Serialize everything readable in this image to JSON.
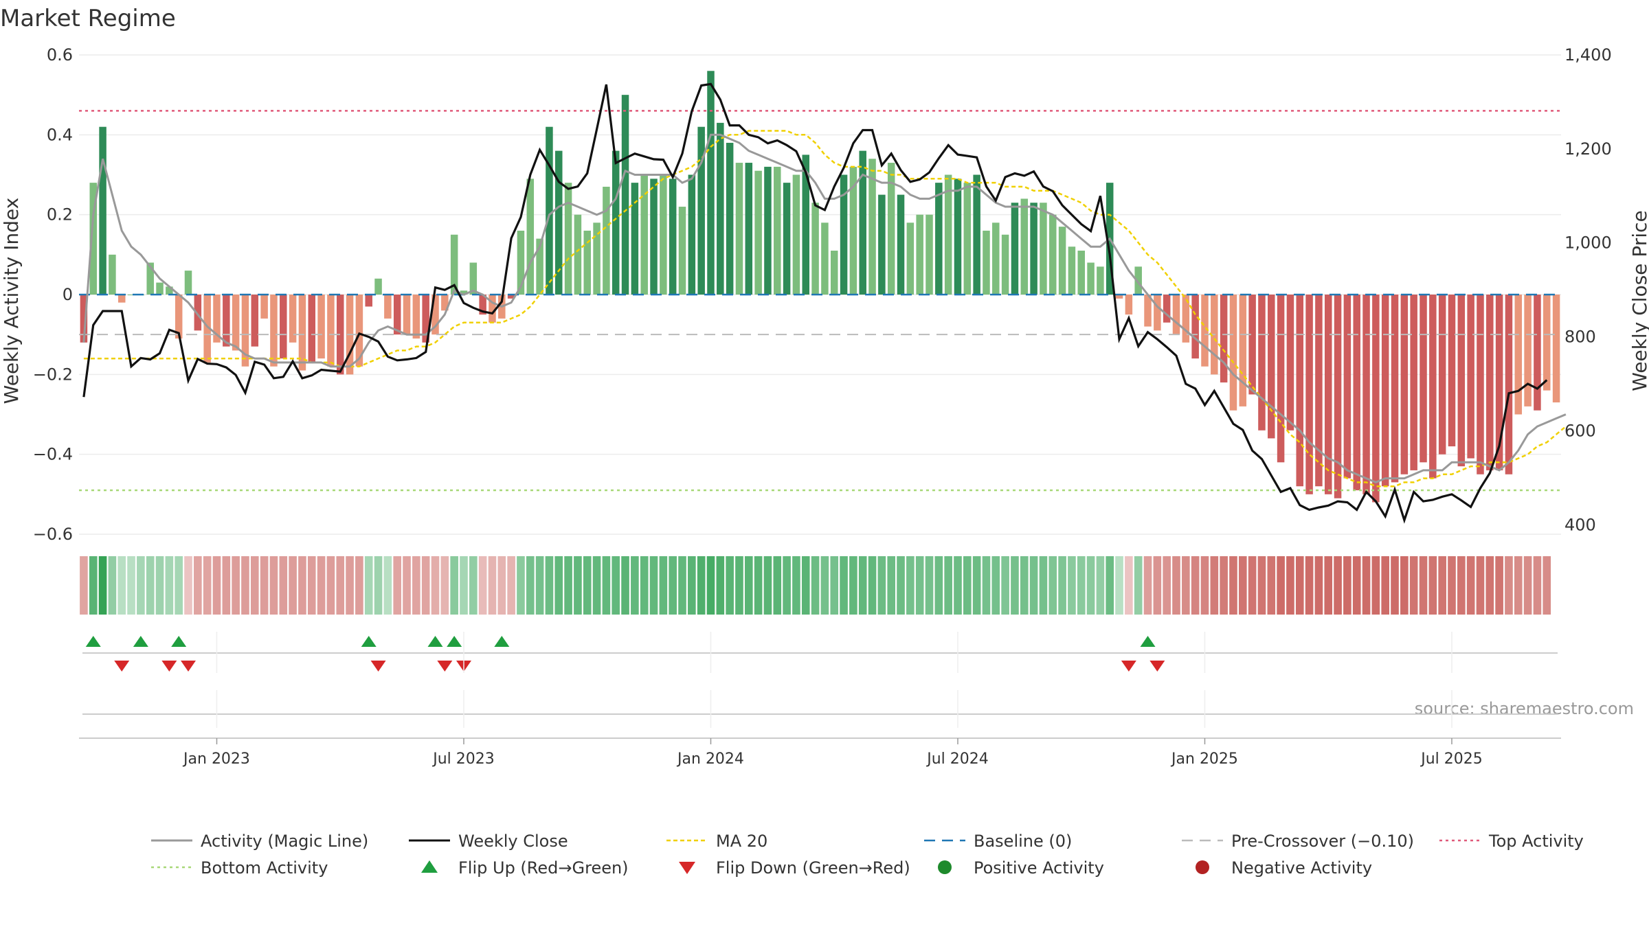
{
  "title": "Market Regime",
  "source": "source: sharemaestro.com",
  "colors": {
    "pos_dark": "#2e8b57",
    "pos_light": "#7dbd7d",
    "neg_dark": "#cd5c5c",
    "neg_light": "#e9967a",
    "close": "#111111",
    "magic": "#999999",
    "ma20": "#f0d000",
    "baseline": "#1f77b4",
    "precross": "#bbbbbb",
    "top": "#e05a7a",
    "bottom": "#a8d878",
    "flip_up": "#1f9e3f",
    "flip_down": "#d62728"
  },
  "chart_data": {
    "type": "bar",
    "left_axis": {
      "label": "Weekly Activity Index",
      "ylim": [
        -0.6,
        0.6
      ],
      "ticks": [
        "0.6",
        "0.4",
        "0.2",
        "0",
        "−0.2",
        "−0.4",
        "−0.6"
      ]
    },
    "right_axis": {
      "label": "Weekly Close Price",
      "ylim": [
        380,
        1400
      ],
      "ticks": [
        "1,400",
        "1,200",
        "1,000",
        "800",
        "600",
        "400"
      ]
    },
    "x_ticks": [
      "Jan 2023",
      "Jul 2023",
      "Jan 2024",
      "Jul 2024",
      "Jan 2025",
      "Jul 2025"
    ],
    "x_tick_weeks": [
      14,
      40,
      66,
      92,
      118,
      144
    ],
    "reference_lines": {
      "baseline": 0,
      "pre_crossover": -0.1,
      "top_activity": 0.46,
      "bottom_activity": -0.49
    },
    "activity_weekly": [
      -0.12,
      0.28,
      0.42,
      0.1,
      -0.02,
      0,
      0,
      0.08,
      0.03,
      0.02,
      -0.11,
      0.06,
      -0.09,
      -0.17,
      -0.12,
      -0.13,
      -0.14,
      -0.18,
      -0.13,
      -0.06,
      -0.18,
      -0.16,
      -0.12,
      -0.19,
      -0.17,
      -0.16,
      -0.18,
      -0.2,
      -0.2,
      -0.18,
      -0.03,
      0.04,
      -0.06,
      -0.1,
      -0.1,
      -0.11,
      -0.12,
      -0.1,
      -0.04,
      0.15,
      0.01,
      0.08,
      -0.05,
      -0.07,
      -0.06,
      -0.01,
      0.16,
      0.29,
      0.14,
      0.42,
      0.36,
      0.28,
      0.2,
      0.16,
      0.18,
      0.27,
      0.36,
      0.5,
      0.28,
      0.3,
      0.29,
      0.3,
      0.29,
      0.22,
      0.3,
      0.42,
      0.56,
      0.43,
      0.38,
      0.33,
      0.33,
      0.31,
      0.32,
      0.32,
      0.28,
      0.3,
      0.35,
      0.23,
      0.18,
      0.11,
      0.3,
      0.32,
      0.36,
      0.34,
      0.25,
      0.33,
      0.25,
      0.18,
      0.2,
      0.2,
      0.28,
      0.3,
      0.29,
      0.28,
      0.3,
      0.16,
      0.18,
      0.15,
      0.23,
      0.24,
      0.23,
      0.23,
      0.2,
      0.17,
      0.12,
      0.11,
      0.08,
      0.07,
      0.28,
      -0.01,
      -0.05,
      0.07,
      -0.08,
      -0.09,
      -0.07,
      -0.1,
      -0.12,
      -0.16,
      -0.18,
      -0.2,
      -0.22,
      -0.29,
      -0.28,
      -0.25,
      -0.34,
      -0.36,
      -0.42,
      -0.34,
      -0.48,
      -0.5,
      -0.48,
      -0.5,
      -0.51,
      -0.46,
      -0.49,
      -0.5,
      -0.52,
      -0.48,
      -0.47,
      -0.45,
      -0.44,
      -0.42,
      -0.46,
      -0.4,
      -0.38,
      -0.43,
      -0.41,
      -0.45,
      -0.44,
      -0.44,
      -0.45,
      -0.3,
      -0.28,
      -0.29,
      -0.24,
      -0.27
    ],
    "close_weekly": [
      672,
      825,
      855,
      855,
      855,
      737,
      755,
      752,
      765,
      815,
      808,
      707,
      753,
      743,
      742,
      735,
      719,
      681,
      747,
      741,
      712,
      715,
      748,
      712,
      718,
      730,
      728,
      726,
      765,
      807,
      800,
      790,
      758,
      750,
      752,
      755,
      768,
      905,
      900,
      910,
      872,
      862,
      854,
      850,
      875,
      1010,
      1055,
      1145,
      1198,
      1165,
      1130,
      1115,
      1120,
      1148,
      1242,
      1337,
      1170,
      1180,
      1190,
      1184,
      1178,
      1177,
      1140,
      1190,
      1280,
      1335,
      1338,
      1305,
      1250,
      1250,
      1230,
      1225,
      1212,
      1218,
      1208,
      1195,
      1150,
      1080,
      1070,
      1120,
      1160,
      1212,
      1240,
      1240,
      1165,
      1190,
      1155,
      1130,
      1135,
      1150,
      1180,
      1208,
      1188,
      1185,
      1182,
      1120,
      1090,
      1140,
      1148,
      1143,
      1152,
      1120,
      1110,
      1080,
      1060,
      1040,
      1025,
      1100,
      975,
      795,
      840,
      780,
      810,
      795,
      778,
      760,
      700,
      690,
      655,
      685,
      650,
      615,
      602,
      558,
      540,
      505,
      470,
      478,
      442,
      432,
      437,
      441,
      450,
      448,
      432,
      470,
      450,
      418,
      475,
      410,
      470,
      450,
      453,
      460,
      465,
      452,
      438,
      478,
      510,
      568,
      680,
      685,
      700,
      690,
      708
    ],
    "magic_weekly": [
      -0.12,
      0.2,
      0.34,
      0.25,
      0.16,
      0.12,
      0.1,
      0.07,
      0.04,
      0.02,
      0,
      -0.02,
      -0.05,
      -0.08,
      -0.1,
      -0.12,
      -0.13,
      -0.15,
      -0.16,
      -0.16,
      -0.17,
      -0.17,
      -0.17,
      -0.17,
      -0.17,
      -0.17,
      -0.18,
      -0.18,
      -0.18,
      -0.16,
      -0.12,
      -0.09,
      -0.08,
      -0.09,
      -0.1,
      -0.1,
      -0.1,
      -0.08,
      -0.05,
      0.01,
      0,
      0.01,
      0,
      -0.02,
      -0.03,
      -0.02,
      0.02,
      0.08,
      0.12,
      0.2,
      0.22,
      0.23,
      0.22,
      0.21,
      0.2,
      0.21,
      0.24,
      0.31,
      0.3,
      0.3,
      0.3,
      0.3,
      0.3,
      0.28,
      0.29,
      0.33,
      0.4,
      0.4,
      0.39,
      0.38,
      0.36,
      0.35,
      0.34,
      0.33,
      0.32,
      0.31,
      0.31,
      0.28,
      0.24,
      0.24,
      0.25,
      0.27,
      0.3,
      0.29,
      0.28,
      0.28,
      0.27,
      0.25,
      0.24,
      0.24,
      0.25,
      0.26,
      0.26,
      0.27,
      0.27,
      0.25,
      0.23,
      0.22,
      0.22,
      0.22,
      0.22,
      0.21,
      0.2,
      0.18,
      0.16,
      0.14,
      0.12,
      0.12,
      0.14,
      0.1,
      0.06,
      0.03,
      0,
      -0.03,
      -0.05,
      -0.07,
      -0.09,
      -0.11,
      -0.13,
      -0.15,
      -0.17,
      -0.2,
      -0.22,
      -0.24,
      -0.26,
      -0.28,
      -0.3,
      -0.32,
      -0.34,
      -0.37,
      -0.39,
      -0.41,
      -0.42,
      -0.44,
      -0.45,
      -0.46,
      -0.47,
      -0.46,
      -0.46,
      -0.46,
      -0.45,
      -0.44,
      -0.44,
      -0.44,
      -0.42,
      -0.42,
      -0.42,
      -0.42,
      -0.43,
      -0.44,
      -0.42,
      -0.39,
      -0.35,
      -0.33,
      -0.32,
      -0.31,
      -0.3
    ],
    "ma20_weekly": [
      -0.16,
      -0.16,
      -0.16,
      -0.16,
      -0.16,
      -0.16,
      -0.16,
      -0.16,
      -0.16,
      -0.16,
      -0.16,
      -0.16,
      -0.16,
      -0.16,
      -0.16,
      -0.16,
      -0.16,
      -0.16,
      -0.16,
      -0.16,
      -0.16,
      -0.16,
      -0.16,
      -0.16,
      -0.17,
      -0.17,
      -0.17,
      -0.18,
      -0.18,
      -0.18,
      -0.17,
      -0.16,
      -0.15,
      -0.14,
      -0.14,
      -0.13,
      -0.13,
      -0.12,
      -0.1,
      -0.08,
      -0.07,
      -0.07,
      -0.07,
      -0.07,
      -0.07,
      -0.06,
      -0.05,
      -0.03,
      0,
      0.03,
      0.06,
      0.09,
      0.11,
      0.13,
      0.15,
      0.17,
      0.19,
      0.21,
      0.23,
      0.25,
      0.27,
      0.29,
      0.3,
      0.31,
      0.32,
      0.34,
      0.37,
      0.39,
      0.4,
      0.4,
      0.41,
      0.41,
      0.41,
      0.41,
      0.41,
      0.4,
      0.4,
      0.38,
      0.35,
      0.33,
      0.32,
      0.32,
      0.32,
      0.31,
      0.31,
      0.3,
      0.3,
      0.29,
      0.29,
      0.29,
      0.29,
      0.29,
      0.29,
      0.28,
      0.28,
      0.28,
      0.28,
      0.27,
      0.27,
      0.27,
      0.26,
      0.26,
      0.26,
      0.25,
      0.24,
      0.23,
      0.21,
      0.2,
      0.2,
      0.18,
      0.16,
      0.13,
      0.1,
      0.08,
      0.05,
      0.02,
      -0.01,
      -0.05,
      -0.08,
      -0.11,
      -0.14,
      -0.17,
      -0.2,
      -0.23,
      -0.26,
      -0.29,
      -0.32,
      -0.35,
      -0.37,
      -0.4,
      -0.42,
      -0.44,
      -0.45,
      -0.46,
      -0.47,
      -0.47,
      -0.48,
      -0.48,
      -0.48,
      -0.47,
      -0.47,
      -0.46,
      -0.46,
      -0.45,
      -0.45,
      -0.44,
      -0.43,
      -0.43,
      -0.42,
      -0.42,
      -0.42,
      -0.41,
      -0.4,
      -0.38,
      -0.37,
      -0.35,
      -0.33
    ],
    "regime_strip_weekly": [
      -0.3,
      0.6,
      0.8,
      0.3,
      0.1,
      0.1,
      0.2,
      0.25,
      0.25,
      0.2,
      0.2,
      -0.1,
      -0.3,
      -0.3,
      -0.35,
      -0.35,
      -0.35,
      -0.35,
      -0.35,
      -0.35,
      -0.35,
      -0.35,
      -0.35,
      -0.35,
      -0.35,
      -0.35,
      -0.35,
      -0.35,
      -0.35,
      -0.35,
      0.2,
      0.25,
      0.1,
      -0.3,
      -0.3,
      -0.3,
      -0.3,
      -0.25,
      -0.2,
      0.35,
      0.2,
      0.3,
      -0.15,
      -0.2,
      -0.2,
      -0.2,
      0.35,
      0.45,
      0.45,
      0.5,
      0.55,
      0.55,
      0.55,
      0.55,
      0.55,
      0.55,
      0.55,
      0.6,
      0.55,
      0.55,
      0.55,
      0.55,
      0.55,
      0.55,
      0.6,
      0.65,
      0.7,
      0.65,
      0.6,
      0.6,
      0.6,
      0.6,
      0.6,
      0.6,
      0.55,
      0.55,
      0.6,
      0.5,
      0.45,
      0.45,
      0.55,
      0.55,
      0.55,
      0.55,
      0.5,
      0.5,
      0.5,
      0.45,
      0.45,
      0.45,
      0.5,
      0.5,
      0.5,
      0.5,
      0.5,
      0.45,
      0.45,
      0.4,
      0.45,
      0.45,
      0.45,
      0.45,
      0.4,
      0.4,
      0.35,
      0.35,
      0.35,
      0.3,
      0.5,
      0.1,
      -0.1,
      0.3,
      -0.35,
      -0.4,
      -0.4,
      -0.45,
      -0.45,
      -0.5,
      -0.5,
      -0.55,
      -0.55,
      -0.6,
      -0.6,
      -0.6,
      -0.6,
      -0.6,
      -0.65,
      -0.65,
      -0.65,
      -0.65,
      -0.65,
      -0.65,
      -0.65,
      -0.65,
      -0.65,
      -0.65,
      -0.65,
      -0.65,
      -0.65,
      -0.65,
      -0.6,
      -0.6,
      -0.6,
      -0.6,
      -0.6,
      -0.6,
      -0.6,
      -0.6,
      -0.6,
      -0.6,
      -0.45,
      -0.45,
      -0.45,
      -0.45,
      -0.45
    ],
    "flip_up_weeks": [
      1,
      6,
      10,
      30,
      37,
      39,
      44,
      112
    ],
    "flip_down_weeks": [
      4,
      9,
      11,
      31,
      38,
      40,
      110,
      113
    ],
    "legend": [
      {
        "key": "magic",
        "label": "Activity (Magic Line)"
      },
      {
        "key": "close",
        "label": "Weekly Close"
      },
      {
        "key": "ma20",
        "label": "MA 20"
      },
      {
        "key": "baseline",
        "label": "Baseline (0)"
      },
      {
        "key": "precross",
        "label": "Pre-Crossover (−0.10)"
      },
      {
        "key": "top",
        "label": "Top Activity"
      },
      {
        "key": "bottom",
        "label": "Bottom Activity"
      },
      {
        "key": "flip_up",
        "label": "Flip Up (Red→Green)"
      },
      {
        "key": "flip_down",
        "label": "Flip Down (Green→Red)"
      },
      {
        "key": "pos",
        "label": "Positive Activity"
      },
      {
        "key": "neg",
        "label": "Negative Activity"
      }
    ]
  }
}
